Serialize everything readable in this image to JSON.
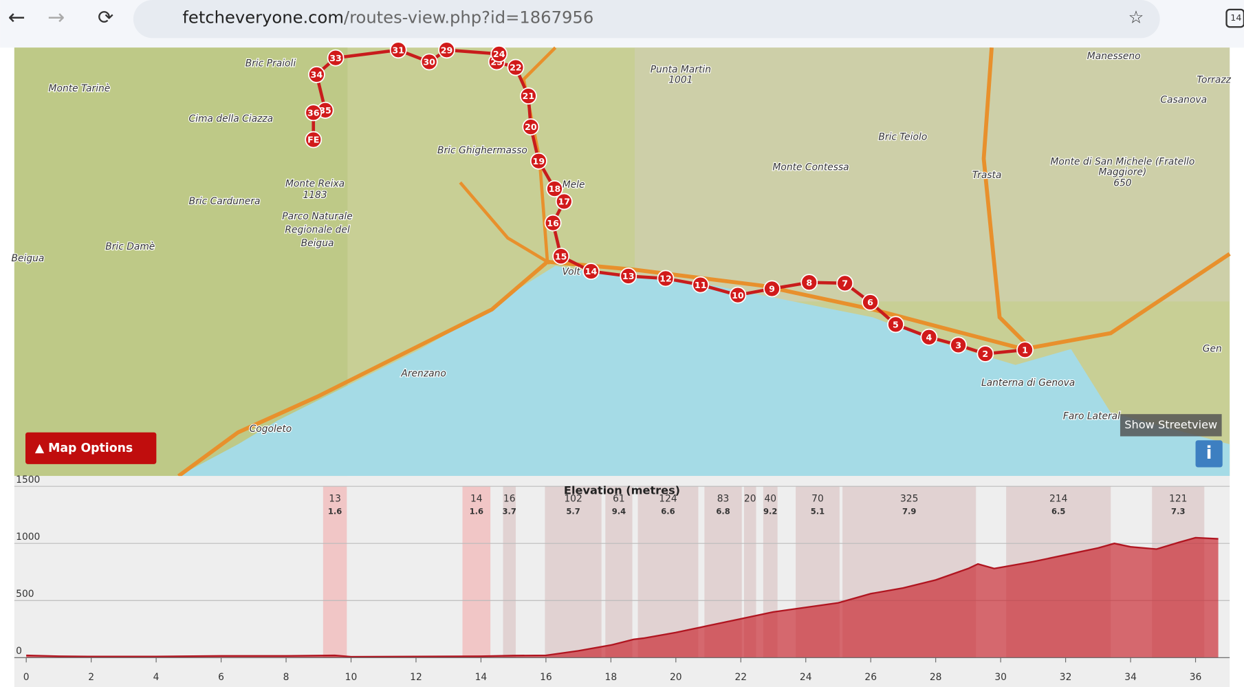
{
  "browser": {
    "url_domain": "fetcheveryone.com",
    "url_path": "/routes-view.php?id=1867956",
    "tab_count": "14"
  },
  "map": {
    "places": [
      "Monte Tarinè",
      "Bric Praioli",
      "Cima della Ciazza",
      "Bric Cardunera",
      "Monte Reixa",
      "1183",
      "Parco Naturale",
      "Regionale del",
      "Beigua",
      "Bric Damè",
      "Beigua",
      "Bric Ghighermasso",
      "Punta Martin",
      "1001",
      "Mele",
      "Volt",
      "Monte Contessa",
      "Bric Teiolo",
      "Trasta",
      "Manesseno",
      "Torrazz",
      "Casanova",
      "Monte di San Michele (Fratello",
      "Maggiore)",
      "650",
      "Arenzano",
      "Cogoleto",
      "Lanterna di Genova",
      "Faro Lateral",
      "Gen"
    ],
    "markers": [
      "1",
      "2",
      "3",
      "4",
      "5",
      "6",
      "7",
      "8",
      "9",
      "10",
      "11",
      "12",
      "13",
      "14",
      "15",
      "16",
      "17",
      "18",
      "19",
      "20",
      "21",
      "22",
      "23",
      "24",
      "29",
      "30",
      "31",
      "33",
      "34",
      "35",
      "36",
      "FE"
    ],
    "map_options": "▲ Map Options",
    "streetview": "Show Streetview",
    "info": "i"
  },
  "elevation": {
    "title": "Elevation (metres)",
    "xlim": [
      0,
      37
    ],
    "ylim": [
      0,
      1500
    ],
    "yticks": [
      0,
      500,
      1000,
      1500
    ],
    "xticks": [
      0,
      2,
      4,
      6,
      8,
      10,
      12,
      14,
      16,
      18,
      20,
      22,
      24,
      26,
      28,
      30,
      32,
      34,
      36
    ],
    "profile": {
      "x": [
        0,
        1,
        2,
        4,
        6,
        8,
        9.5,
        10,
        12,
        14,
        15,
        16,
        17,
        18,
        18.7,
        19,
        20,
        21,
        22,
        23,
        24,
        25,
        26,
        27,
        28,
        29,
        29.3,
        29.8,
        30,
        31,
        32,
        33,
        33.5,
        34,
        34.8,
        35.5,
        36,
        36.7
      ],
      "y": [
        20,
        12,
        10,
        10,
        15,
        15,
        20,
        8,
        10,
        12,
        18,
        20,
        60,
        110,
        160,
        170,
        220,
        280,
        340,
        400,
        440,
        480,
        560,
        610,
        680,
        780,
        820,
        780,
        790,
        840,
        900,
        960,
        1000,
        970,
        950,
        1010,
        1050,
        1040
      ]
    },
    "climbs": [
      {
        "start": 9.14,
        "end": 9.87,
        "gain": 13,
        "gradient": 1.6,
        "color": "#f2b8b8"
      },
      {
        "start": 13.43,
        "end": 14.29,
        "gain": 14,
        "gradient": 1.6,
        "color": "#f2b8b8"
      },
      {
        "start": 14.68,
        "end": 15.07,
        "gain": 16,
        "gradient": 3.7,
        "color": "#dcc8c8"
      },
      {
        "start": 15.97,
        "end": 17.71,
        "gain": 102,
        "gradient": 5.7,
        "color": "#dcc8c8"
      },
      {
        "start": 17.83,
        "end": 18.66,
        "gain": 61,
        "gradient": 9.4,
        "color": "#dcc8c8"
      },
      {
        "start": 18.83,
        "end": 20.69,
        "gain": 124,
        "gradient": 6.6,
        "color": "#dcc8c8"
      },
      {
        "start": 20.88,
        "end": 22.03,
        "gain": 83,
        "gradient": 6.8,
        "color": "#dcc8c8"
      },
      {
        "start": 22.1,
        "end": 22.47,
        "gain": 20,
        "color": "#dcc8c8"
      },
      {
        "start": 22.69,
        "end": 23.13,
        "gain": 40,
        "gradient": 9.2,
        "color": "#dcc8c8"
      },
      {
        "start": 23.69,
        "end": 25.04,
        "gain": 70,
        "gradient": 5.1,
        "color": "#dcc8c8"
      },
      {
        "start": 25.13,
        "end": 29.24,
        "gain": 325,
        "gradient": 7.9,
        "color": "#dcc8c8"
      },
      {
        "start": 30.17,
        "end": 33.39,
        "gain": 214,
        "gradient": 6.5,
        "color": "#dcc8c8"
      },
      {
        "start": 34.66,
        "end": 36.27,
        "gain": 121,
        "gradient": 7.3,
        "color": "#dcc8c8"
      }
    ]
  }
}
